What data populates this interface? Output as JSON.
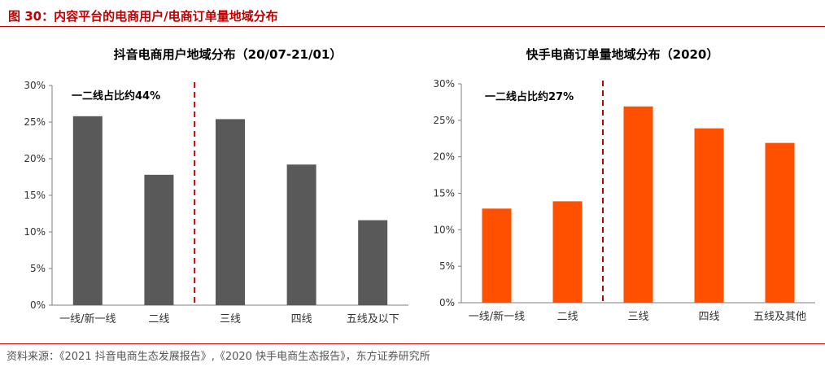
{
  "figure": {
    "title": "图 30：内容平台的电商用户/电商订单量地域分布",
    "source": "资料来源：《2021 抖音电商生态发展报告》,《2020 快手电商生态报告》，东方证券研究所"
  },
  "chart_data": [
    {
      "type": "bar",
      "title": "抖音电商用户地域分布（20/07-21/01）",
      "categories": [
        "一线/新一线",
        "二线",
        "三线",
        "四线",
        "五线及以下"
      ],
      "values": [
        25.8,
        17.8,
        25.4,
        19.2,
        11.6
      ],
      "ylim": [
        0,
        30
      ],
      "yticks": [
        "0%",
        "5%",
        "10%",
        "15%",
        "20%",
        "25%",
        "30%"
      ],
      "annotation": "一二线占比约44%",
      "divider_after_category": 1,
      "color": "#595959",
      "divider_color": "#c00000",
      "grid": false
    },
    {
      "type": "bar",
      "title": "快手电商订单量地域分布（2020）",
      "categories": [
        "一线/新一线",
        "二线",
        "三线",
        "四线",
        "五线及其他"
      ],
      "values": [
        12.9,
        13.9,
        26.9,
        23.9,
        21.9
      ],
      "ylim": [
        0,
        30
      ],
      "yticks": [
        "0%",
        "5%",
        "10%",
        "15%",
        "20%",
        "25%",
        "30%"
      ],
      "annotation": "一二线占比约27%",
      "divider_after_category": 1,
      "color": "#ff5000",
      "divider_color": "#c00000",
      "grid": false
    }
  ]
}
